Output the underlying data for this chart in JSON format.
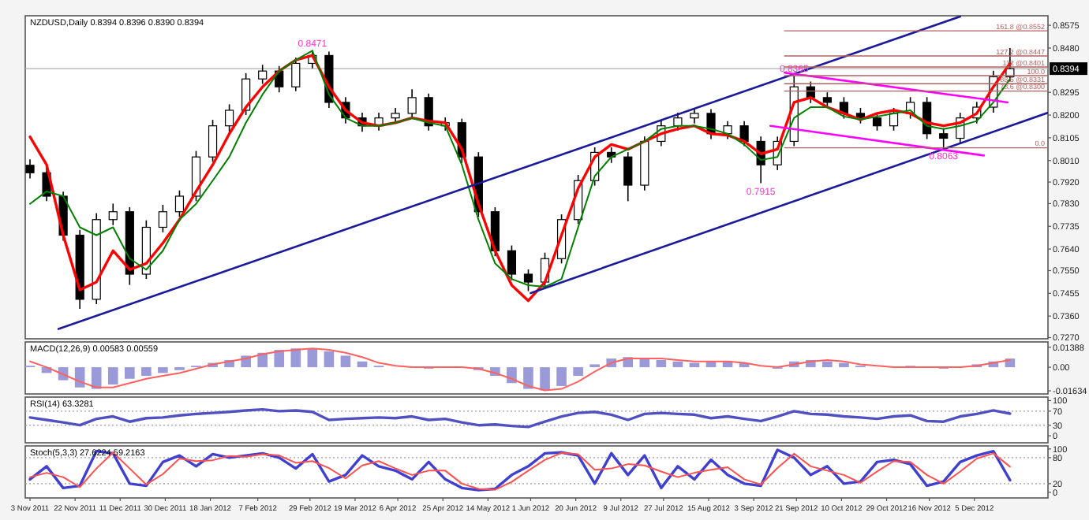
{
  "chart_data": [
    {
      "type": "candlestick",
      "title": "NZDUSD,Daily 0.8394 0.8396 0.8390 0.8394",
      "color": "#000000",
      "tick_labels": "y",
      "x": [
        "2011-11-03",
        "2011-11-10",
        "2011-11-17",
        "2011-11-24",
        "2011-12-01",
        "2011-12-08",
        "2011-12-15",
        "2011-12-22",
        "2011-12-29",
        "2012-01-05",
        "2012-01-12",
        "2012-01-19",
        "2012-01-26",
        "2012-02-02",
        "2012-02-09",
        "2012-02-16",
        "2012-02-23",
        "2012-03-01",
        "2012-03-08",
        "2012-03-15",
        "2012-03-22",
        "2012-03-29",
        "2012-04-05",
        "2012-04-12",
        "2012-04-19",
        "2012-04-26",
        "2012-05-03",
        "2012-05-10",
        "2012-05-17",
        "2012-05-24",
        "2012-05-31",
        "2012-06-07",
        "2012-06-14",
        "2012-06-21",
        "2012-06-28",
        "2012-07-05",
        "2012-07-12",
        "2012-07-19",
        "2012-07-26",
        "2012-08-02",
        "2012-08-09",
        "2012-08-16",
        "2012-08-23",
        "2012-08-30",
        "2012-09-06",
        "2012-09-13",
        "2012-09-20",
        "2012-09-27",
        "2012-10-04",
        "2012-10-11",
        "2012-10-18",
        "2012-10-25",
        "2012-11-01",
        "2012-11-08",
        "2012-11-15",
        "2012-11-22",
        "2012-11-29",
        "2012-12-06",
        "2012-12-13",
        "2012-12-20"
      ],
      "ohlc": [
        [
          0.799,
          0.8015,
          0.7935,
          0.7959
        ],
        [
          0.7959,
          0.7985,
          0.784,
          0.7861
        ],
        [
          0.7861,
          0.788,
          0.7675,
          0.7698
        ],
        [
          0.7698,
          0.772,
          0.739,
          0.743
        ],
        [
          0.743,
          0.779,
          0.741,
          0.7763
        ],
        [
          0.7763,
          0.783,
          0.774,
          0.7796
        ],
        [
          0.7796,
          0.7815,
          0.749,
          0.7535
        ],
        [
          0.7535,
          0.776,
          0.7515,
          0.7731
        ],
        [
          0.7731,
          0.7825,
          0.771,
          0.7796
        ],
        [
          0.7796,
          0.7885,
          0.7775,
          0.7861
        ],
        [
          0.7861,
          0.805,
          0.784,
          0.8025
        ],
        [
          0.8025,
          0.818,
          0.8005,
          0.8155
        ],
        [
          0.8155,
          0.8245,
          0.813,
          0.822
        ],
        [
          0.822,
          0.8375,
          0.82,
          0.8351
        ],
        [
          0.8351,
          0.841,
          0.833,
          0.8384
        ],
        [
          0.8384,
          0.8405,
          0.8295,
          0.8318
        ],
        [
          0.8318,
          0.844,
          0.83,
          0.8416
        ],
        [
          0.8416,
          0.8471,
          0.8395,
          0.8449
        ],
        [
          0.8449,
          0.8465,
          0.823,
          0.8253
        ],
        [
          0.8253,
          0.8275,
          0.8165,
          0.8188
        ],
        [
          0.8188,
          0.821,
          0.813,
          0.8155
        ],
        [
          0.8155,
          0.821,
          0.8135,
          0.8188
        ],
        [
          0.8188,
          0.823,
          0.8165,
          0.8207
        ],
        [
          0.8207,
          0.8308,
          0.8185,
          0.8273
        ],
        [
          0.8273,
          0.829,
          0.8135,
          0.8155
        ],
        [
          0.8155,
          0.819,
          0.8135,
          0.8168
        ],
        [
          0.8168,
          0.8185,
          0.8,
          0.8025
        ],
        [
          0.8025,
          0.8045,
          0.7775,
          0.7796
        ],
        [
          0.7796,
          0.7815,
          0.761,
          0.7633
        ],
        [
          0.7633,
          0.7655,
          0.751,
          0.7535
        ],
        [
          0.7535,
          0.7555,
          0.7464,
          0.7502
        ],
        [
          0.7502,
          0.7625,
          0.748,
          0.76
        ],
        [
          0.76,
          0.7785,
          0.758,
          0.7763
        ],
        [
          0.7763,
          0.795,
          0.7745,
          0.7926
        ],
        [
          0.7926,
          0.8065,
          0.7905,
          0.8044
        ],
        [
          0.8044,
          0.8065,
          0.8,
          0.8025
        ],
        [
          0.8025,
          0.8045,
          0.784,
          0.7907
        ],
        [
          0.7907,
          0.811,
          0.7885,
          0.809
        ],
        [
          0.809,
          0.818,
          0.807,
          0.8155
        ],
        [
          0.8155,
          0.821,
          0.8135,
          0.8188
        ],
        [
          0.8188,
          0.823,
          0.8165,
          0.8207
        ],
        [
          0.8207,
          0.8225,
          0.81,
          0.8122
        ],
        [
          0.8122,
          0.8175,
          0.81,
          0.8155
        ],
        [
          0.8155,
          0.8175,
          0.807,
          0.809
        ],
        [
          0.809,
          0.811,
          0.7915,
          0.7992
        ],
        [
          0.7992,
          0.811,
          0.797,
          0.809
        ],
        [
          0.809,
          0.8365,
          0.807,
          0.8318
        ],
        [
          0.8318,
          0.834,
          0.825,
          0.8273
        ],
        [
          0.8273,
          0.8295,
          0.823,
          0.8253
        ],
        [
          0.8253,
          0.8275,
          0.8185,
          0.8207
        ],
        [
          0.8207,
          0.823,
          0.8165,
          0.8188
        ],
        [
          0.8188,
          0.821,
          0.8135,
          0.8155
        ],
        [
          0.8155,
          0.823,
          0.8135,
          0.8207
        ],
        [
          0.8207,
          0.8275,
          0.8185,
          0.8253
        ],
        [
          0.8253,
          0.8275,
          0.81,
          0.8122
        ],
        [
          0.8122,
          0.8145,
          0.8063,
          0.8103
        ],
        [
          0.8103,
          0.821,
          0.808,
          0.8188
        ],
        [
          0.8188,
          0.8255,
          0.8165,
          0.8233
        ],
        [
          0.8233,
          0.8385,
          0.821,
          0.836
        ],
        [
          0.836,
          0.848,
          0.834,
          0.8394
        ]
      ],
      "series": [
        {
          "type": "line",
          "color": "#ff0000",
          "values": [
            0.8109,
            0.7992,
            0.7698,
            0.7469,
            0.7502,
            0.7633,
            0.7554,
            0.758,
            0.7665,
            0.7763,
            0.7881,
            0.7992,
            0.8122,
            0.8233,
            0.8318,
            0.8384,
            0.843,
            0.8449,
            0.8318,
            0.822,
            0.8168,
            0.8155,
            0.8168,
            0.8188,
            0.8175,
            0.8168,
            0.8057,
            0.7829,
            0.7633,
            0.7489,
            0.7424,
            0.7502,
            0.7698,
            0.7894,
            0.8025,
            0.8077,
            0.8057,
            0.809,
            0.8122,
            0.8142,
            0.8155,
            0.8122,
            0.8116,
            0.809,
            0.8038,
            0.8057,
            0.8253,
            0.8273,
            0.8233,
            0.8207,
            0.8181,
            0.8207,
            0.822,
            0.8207,
            0.8168,
            0.8155,
            0.8168,
            0.8207,
            0.8318,
            0.8416
          ]
        },
        {
          "type": "line",
          "color": "#008000",
          "values": [
            0.7829,
            0.7881,
            0.7861,
            0.7731,
            0.7698,
            0.7731,
            0.76,
            0.7554,
            0.7633,
            0.7763,
            0.7829,
            0.7926,
            0.8025,
            0.8168,
            0.8286,
            0.8384,
            0.843,
            0.8469,
            0.8286,
            0.8188,
            0.8155,
            0.8155,
            0.8168,
            0.8188,
            0.8168,
            0.8155,
            0.7992,
            0.7763,
            0.758,
            0.7515,
            0.7489,
            0.7482,
            0.7515,
            0.7731,
            0.7945,
            0.8025,
            0.8057,
            0.809,
            0.8142,
            0.8155,
            0.8155,
            0.8142,
            0.8122,
            0.8077,
            0.8012,
            0.8025,
            0.8188,
            0.8233,
            0.8233,
            0.8194,
            0.8181,
            0.8194,
            0.8207,
            0.822,
            0.8155,
            0.8142,
            0.8155,
            0.8175,
            0.8253,
            0.8351
          ]
        },
        {
          "type": "line",
          "color": "#1a1a9a",
          "x": [
            "2011-11-15",
            "2012-11-29"
          ],
          "values": [
            0.7306,
            0.8612
          ]
        },
        {
          "type": "line",
          "color": "#1a1a9a",
          "x": [
            "2012-06-01",
            "2013-01-05"
          ],
          "values": [
            0.7456,
            0.821
          ]
        },
        {
          "type": "line",
          "color": "#ff00ff",
          "x": [
            "2012-09-16",
            "2012-12-19"
          ],
          "values": [
            0.8377,
            0.8253
          ]
        },
        {
          "type": "line",
          "color": "#ff00ff",
          "x": [
            "2012-09-10",
            "2012-12-09"
          ],
          "values": [
            0.8155,
            0.8031
          ]
        },
        {
          "type": "line",
          "name": "161.8 @0.8552",
          "color": "#b06060",
          "x": [
            "2012-09-16",
            "2013-01-05"
          ],
          "values": [
            0.8552,
            0.8552
          ]
        },
        {
          "type": "line",
          "name": "127.2 @0.8447",
          "color": "#b06060",
          "x": [
            "2012-09-16",
            "2013-01-05"
          ],
          "values": [
            0.8447,
            0.8447
          ]
        },
        {
          "type": "line",
          "name": "112 @0.8401",
          "color": "#b06060",
          "x": [
            "2012-09-16",
            "2013-01-05"
          ],
          "values": [
            0.8401,
            0.8401
          ]
        },
        {
          "type": "line",
          "name": "100.0",
          "color": "#b06060",
          "x": [
            "2012-09-16",
            "2013-01-05"
          ],
          "values": [
            0.8365,
            0.8365
          ]
        },
        {
          "type": "line",
          "name": "88.6 @0.8331",
          "color": "#b06060",
          "x": [
            "2012-09-16",
            "2013-01-05"
          ],
          "values": [
            0.8331,
            0.8331
          ]
        },
        {
          "type": "line",
          "name": "78.6 @0.8300",
          "color": "#b06060",
          "x": [
            "2012-09-16",
            "2013-01-05"
          ],
          "values": [
            0.83,
            0.83
          ]
        },
        {
          "type": "line",
          "name": "0.0",
          "color": "#b06060",
          "x": [
            "2012-09-16",
            "2013-01-05"
          ],
          "values": [
            0.8063,
            0.8063
          ]
        }
      ],
      "ref_lines": [
        {
          "axis": "y",
          "value": 0.8394,
          "label": "0.8394",
          "color": "#b0b0b0"
        }
      ],
      "annotations": [
        {
          "text": "0.8471",
          "x": "2012-03-01",
          "y": 0.8471
        },
        {
          "text": "0.8365",
          "x": "2012-09-20",
          "y": 0.8365
        },
        {
          "text": "0.7915",
          "x": "2012-09-06",
          "y": 0.7915
        },
        {
          "text": "0.8063",
          "x": "2012-11-22",
          "y": 0.8063
        }
      ],
      "xlim": [
        "2011-11-01",
        "2013-01-05"
      ],
      "ylim": [
        0.7265,
        0.8615
      ],
      "yticks": [
        0.8575,
        {
          "value": 0.848,
          "label": "0.8480"
        },
        0.8295,
        {
          "value": 0.82,
          "label": "0.8200"
        },
        0.8105,
        {
          "value": 0.801,
          "label": "0.8010"
        },
        {
          "value": 0.792,
          "label": "0.7920"
        },
        {
          "value": 0.783,
          "label": "0.7830"
        },
        0.7735,
        {
          "value": 0.764,
          "label": "0.7640"
        },
        {
          "value": 0.755,
          "label": "0.7550"
        },
        0.7455,
        {
          "value": 0.736,
          "label": "0.7360"
        },
        {
          "value": 0.727,
          "label": "0.7270"
        }
      ]
    },
    {
      "type": "bar",
      "title": "MACD(12,26,9) 0.00583 0.00559",
      "tick_labels": "y",
      "x": [
        "2011-11-03",
        "2011-11-10",
        "2011-11-17",
        "2011-11-24",
        "2011-12-01",
        "2011-12-08",
        "2011-12-15",
        "2011-12-22",
        "2011-12-29",
        "2012-01-05",
        "2012-01-12",
        "2012-01-19",
        "2012-01-26",
        "2012-02-02",
        "2012-02-09",
        "2012-02-16",
        "2012-02-23",
        "2012-03-01",
        "2012-03-08",
        "2012-03-15",
        "2012-03-22",
        "2012-03-29",
        "2012-04-05",
        "2012-04-12",
        "2012-04-19",
        "2012-04-26",
        "2012-05-03",
        "2012-05-10",
        "2012-05-17",
        "2012-05-24",
        "2012-05-31",
        "2012-06-07",
        "2012-06-14",
        "2012-06-21",
        "2012-06-28",
        "2012-07-05",
        "2012-07-12",
        "2012-07-19",
        "2012-07-26",
        "2012-08-02",
        "2012-08-09",
        "2012-08-16",
        "2012-08-23",
        "2012-08-30",
        "2012-09-06",
        "2012-09-13",
        "2012-09-20",
        "2012-09-27",
        "2012-10-04",
        "2012-10-11",
        "2012-10-18",
        "2012-10-25",
        "2012-11-01",
        "2012-11-08",
        "2012-11-15",
        "2012-11-22",
        "2012-11-29",
        "2012-12-06",
        "2012-12-13",
        "2012-12-20"
      ],
      "series": [
        {
          "type": "bar",
          "color": "#9a9ad8",
          "values": [
            0.001,
            -0.004,
            -0.009,
            -0.014,
            -0.015,
            -0.012,
            -0.008,
            -0.006,
            -0.004,
            -0.002,
            0.001,
            0.003,
            0.005,
            0.008,
            0.01,
            0.012,
            0.013,
            0.013,
            0.011,
            0.008,
            0.004,
            0.001,
            0,
            0,
            -0.001,
            0,
            0,
            -0.002,
            -0.006,
            -0.011,
            -0.015,
            -0.016,
            -0.013,
            -0.006,
            0.002,
            0.006,
            0.007,
            0.006,
            0.005,
            0.004,
            0.003,
            0.004,
            0.004,
            0.003,
            0,
            -0.001,
            0.004,
            0.005,
            0.004,
            0.003,
            0.001,
            0,
            0,
            0.001,
            0,
            -0.001,
            0,
            0.002,
            0.004,
            0.006
          ]
        },
        {
          "type": "line",
          "color": "#ff6060",
          "values": [
            0.004,
            0,
            -0.005,
            -0.01,
            -0.014,
            -0.014,
            -0.011,
            -0.008,
            -0.006,
            -0.004,
            -0.001,
            0.002,
            0.004,
            0.006,
            0.009,
            0.011,
            0.012,
            0.013,
            0.012,
            0.01,
            0.007,
            0.003,
            0.001,
            0,
            0,
            0,
            0,
            -0.001,
            -0.004,
            -0.008,
            -0.013,
            -0.016,
            -0.015,
            -0.01,
            -0.003,
            0.003,
            0.006,
            0.006,
            0.006,
            0.005,
            0.004,
            0.004,
            0.004,
            0.003,
            0.001,
            0,
            0.002,
            0.004,
            0.005,
            0.004,
            0.002,
            0.001,
            0,
            0,
            0,
            0,
            0,
            0.001,
            0.003,
            0.005
          ]
        }
      ],
      "xlim": [
        "2011-11-01",
        "2013-01-05"
      ],
      "ylim": [
        -0.0185,
        0.0175
      ],
      "yticks": [
        0.01388,
        {
          "value": 0,
          "label": "0.00"
        },
        -0.01634
      ]
    },
    {
      "type": "line",
      "title": "RSI(14) 63.3281",
      "tick_labels": "y",
      "x": [
        "2011-11-03",
        "2011-11-10",
        "2011-11-17",
        "2011-11-24",
        "2011-12-01",
        "2011-12-08",
        "2011-12-15",
        "2011-12-22",
        "2011-12-29",
        "2012-01-05",
        "2012-01-12",
        "2012-01-19",
        "2012-01-26",
        "2012-02-02",
        "2012-02-09",
        "2012-02-16",
        "2012-02-23",
        "2012-03-01",
        "2012-03-08",
        "2012-03-15",
        "2012-03-22",
        "2012-03-29",
        "2012-04-05",
        "2012-04-12",
        "2012-04-19",
        "2012-04-26",
        "2012-05-03",
        "2012-05-10",
        "2012-05-17",
        "2012-05-24",
        "2012-05-31",
        "2012-06-07",
        "2012-06-14",
        "2012-06-21",
        "2012-06-28",
        "2012-07-05",
        "2012-07-12",
        "2012-07-19",
        "2012-07-26",
        "2012-08-02",
        "2012-08-09",
        "2012-08-16",
        "2012-08-23",
        "2012-08-30",
        "2012-09-06",
        "2012-09-13",
        "2012-09-20",
        "2012-09-27",
        "2012-10-04",
        "2012-10-11",
        "2012-10-18",
        "2012-10-25",
        "2012-11-01",
        "2012-11-08",
        "2012-11-15",
        "2012-11-22",
        "2012-11-29",
        "2012-12-06",
        "2012-12-13",
        "2012-12-20"
      ],
      "series": [
        {
          "color": "#5050c0",
          "values": [
            52,
            45,
            38,
            30,
            48,
            55,
            40,
            50,
            52,
            58,
            62,
            65,
            68,
            72,
            75,
            70,
            72,
            68,
            45,
            48,
            50,
            52,
            50,
            55,
            45,
            48,
            38,
            30,
            32,
            28,
            25,
            40,
            55,
            65,
            68,
            60,
            45,
            62,
            65,
            62,
            60,
            50,
            55,
            48,
            42,
            55,
            70,
            62,
            60,
            55,
            52,
            48,
            55,
            58,
            42,
            40,
            55,
            62,
            72,
            63
          ]
        }
      ],
      "ref_lines": [
        {
          "axis": "y",
          "value": 70,
          "color": "#a0a0a0",
          "line_style": "dotted"
        },
        {
          "axis": "y",
          "value": 30,
          "color": "#a0a0a0",
          "line_style": "dotted"
        }
      ],
      "xlim": [
        "2011-11-01",
        "2013-01-05"
      ],
      "ylim": [
        -20,
        110
      ],
      "yticks": [
        100,
        70,
        30,
        0
      ]
    },
    {
      "type": "line",
      "title": "Stoch(5,3,3) 27.6224 59.2163",
      "x": [
        "2011-11-03",
        "2011-11-10",
        "2011-11-17",
        "2011-11-24",
        "2011-12-01",
        "2011-12-08",
        "2011-12-15",
        "2011-12-22",
        "2011-12-29",
        "2012-01-05",
        "2012-01-12",
        "2012-01-19",
        "2012-01-26",
        "2012-02-02",
        "2012-02-09",
        "2012-02-16",
        "2012-02-23",
        "2012-03-01",
        "2012-03-08",
        "2012-03-15",
        "2012-03-22",
        "2012-03-29",
        "2012-04-05",
        "2012-04-12",
        "2012-04-19",
        "2012-04-26",
        "2012-05-03",
        "2012-05-10",
        "2012-05-17",
        "2012-05-24",
        "2012-05-31",
        "2012-06-07",
        "2012-06-14",
        "2012-06-21",
        "2012-06-28",
        "2012-07-05",
        "2012-07-12",
        "2012-07-19",
        "2012-07-26",
        "2012-08-02",
        "2012-08-09",
        "2012-08-16",
        "2012-08-23",
        "2012-08-30",
        "2012-09-06",
        "2012-09-13",
        "2012-09-20",
        "2012-09-27",
        "2012-10-04",
        "2012-10-11",
        "2012-10-18",
        "2012-10-25",
        "2012-11-01",
        "2012-11-08",
        "2012-11-15",
        "2012-11-22",
        "2012-11-29",
        "2012-12-06",
        "2012-12-13",
        "2012-12-20"
      ],
      "series": [
        {
          "color": "#4040d0",
          "values": [
            30,
            60,
            10,
            15,
            95,
            90,
            20,
            15,
            70,
            85,
            60,
            88,
            80,
            85,
            90,
            80,
            55,
            88,
            25,
            40,
            85,
            60,
            50,
            30,
            70,
            30,
            10,
            5,
            8,
            40,
            60,
            90,
            92,
            85,
            20,
            90,
            40,
            85,
            10,
            60,
            30,
            75,
            40,
            20,
            15,
            98,
            80,
            40,
            60,
            20,
            25,
            70,
            75,
            65,
            15,
            25,
            70,
            85,
            95,
            28
          ]
        },
        {
          "color": "#ff5050",
          "values": [
            35,
            45,
            35,
            12,
            55,
            92,
            55,
            18,
            42,
            78,
            72,
            74,
            84,
            82,
            88,
            85,
            68,
            72,
            56,
            32,
            62,
            72,
            55,
            40,
            50,
            50,
            20,
            8,
            6,
            24,
            50,
            75,
            91,
            88,
            52,
            55,
            65,
            62,
            48,
            35,
            45,
            52,
            58,
            30,
            18,
            56,
            89,
            60,
            50,
            40,
            22,
            48,
            72,
            70,
            40,
            20,
            48,
            78,
            90,
            59
          ]
        }
      ],
      "ref_lines": [
        {
          "axis": "y",
          "value": 80,
          "color": "#a0a0a0",
          "line_style": "dotted"
        },
        {
          "axis": "y",
          "value": 20,
          "color": "#a0a0a0",
          "line_style": "dotted"
        }
      ],
      "xlim": [
        "2011-11-01",
        "2013-01-05"
      ],
      "ylim": [
        -13,
        107
      ],
      "yticks": [
        100,
        80,
        20,
        0
      ],
      "xticks": [
        {
          "value": "2011-11-03",
          "label": "3 Nov 2011"
        },
        {
          "value": "2011-11-22",
          "label": "22 Nov 2011"
        },
        {
          "value": "2011-12-11",
          "label": "11 Dec 2011"
        },
        {
          "value": "2011-12-30",
          "label": "30 Dec 2011"
        },
        {
          "value": "2012-01-18",
          "label": "18 Jan 2012"
        },
        {
          "value": "2012-02-07",
          "label": "7 Feb 2012"
        },
        {
          "value": "2012-02-29",
          "label": "29 Feb 2012"
        },
        {
          "value": "2012-03-19",
          "label": "19 Mar 2012"
        },
        {
          "value": "2012-04-06",
          "label": "6 Apr 2012"
        },
        {
          "value": "2012-04-25",
          "label": "25 Apr 2012"
        },
        {
          "value": "2012-05-14",
          "label": "14 May 2012"
        },
        {
          "value": "2012-06-01",
          "label": "1 Jun 2012"
        },
        {
          "value": "2012-06-20",
          "label": "20 Jun 2012"
        },
        {
          "value": "2012-07-09",
          "label": "9 Jul 2012"
        },
        {
          "value": "2012-07-27",
          "label": "27 Jul 2012"
        },
        {
          "value": "2012-08-15",
          "label": "15 Aug 2012"
        },
        {
          "value": "2012-09-03",
          "label": "3 Sep 2012"
        },
        {
          "value": "2012-09-21",
          "label": "21 Sep 2012"
        },
        {
          "value": "2012-10-10",
          "label": "10 Oct 2012"
        },
        {
          "value": "2012-10-29",
          "label": "29 Oct 2012"
        },
        {
          "value": "2012-11-16",
          "label": "16 Nov 2012"
        },
        {
          "value": "2012-12-05",
          "label": "5 Dec 2012"
        }
      ]
    }
  ]
}
